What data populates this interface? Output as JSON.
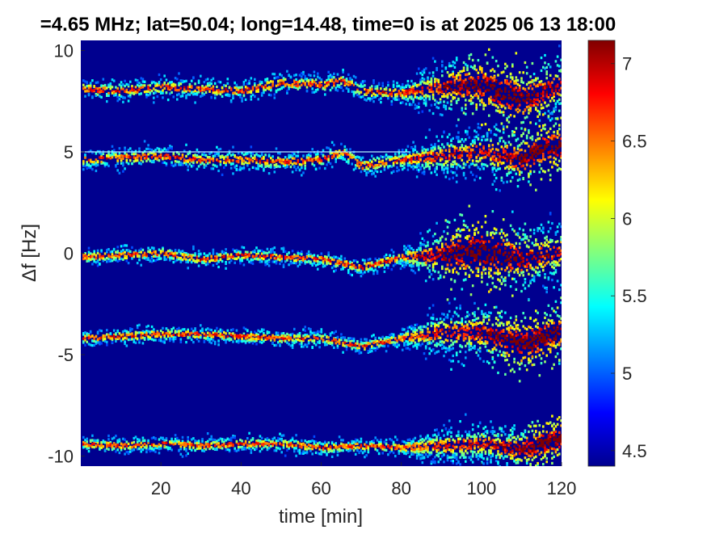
{
  "chart_data": {
    "type": "heatmap",
    "title": "=4.65 MHz;  lat=50.04; long=14.48, time=0 is at 2025 06 13 18:00",
    "xlabel": "time [min]",
    "ylabel": "Δf [Hz]",
    "xlim": [
      0,
      120
    ],
    "ylim": [
      -10.5,
      10.5
    ],
    "xticks": [
      20,
      40,
      60,
      80,
      100,
      120
    ],
    "yticks": [
      -10,
      -5,
      0,
      5,
      10
    ],
    "colorbar": {
      "clim": [
        4.4,
        7.15
      ],
      "ticks": [
        4.5,
        5,
        5.5,
        6,
        6.5,
        7
      ],
      "colormap": "jet"
    },
    "background_color": "#00008f",
    "reference_line": {
      "y": 5.0,
      "x_end": 82
    },
    "traces": [
      {
        "points": [
          [
            0,
            8.1
          ],
          [
            10,
            8.0
          ],
          [
            20,
            8.2
          ],
          [
            30,
            8.1
          ],
          [
            40,
            8.0
          ],
          [
            50,
            8.4
          ],
          [
            60,
            8.3
          ],
          [
            65,
            8.5
          ],
          [
            70,
            8.0
          ],
          [
            80,
            7.9
          ],
          [
            90,
            8.2
          ],
          [
            100,
            8.3
          ],
          [
            110,
            7.6
          ],
          [
            120,
            8.3
          ]
        ],
        "width_before_80": 0.45,
        "width_after_80": 1.3,
        "late_intensity_peak_x": 105
      },
      {
        "points": [
          [
            0,
            4.6
          ],
          [
            10,
            4.7
          ],
          [
            20,
            4.8
          ],
          [
            30,
            4.6
          ],
          [
            40,
            4.6
          ],
          [
            50,
            4.5
          ],
          [
            60,
            4.6
          ],
          [
            65,
            5.0
          ],
          [
            70,
            4.3
          ],
          [
            80,
            4.6
          ],
          [
            90,
            4.8
          ],
          [
            100,
            5.0
          ],
          [
            110,
            4.6
          ],
          [
            115,
            5.2
          ],
          [
            120,
            5.3
          ]
        ],
        "width_before_80": 0.45,
        "width_after_80": 1.1,
        "late_intensity_peak_x": 118
      },
      {
        "points": [
          [
            0,
            -0.2
          ],
          [
            10,
            -0.1
          ],
          [
            20,
            0.0
          ],
          [
            30,
            -0.3
          ],
          [
            40,
            -0.1
          ],
          [
            50,
            -0.2
          ],
          [
            60,
            -0.3
          ],
          [
            65,
            -0.5
          ],
          [
            70,
            -0.7
          ],
          [
            80,
            -0.2
          ],
          [
            90,
            -0.1
          ],
          [
            100,
            0.1
          ],
          [
            110,
            -0.3
          ],
          [
            120,
            0.1
          ]
        ],
        "width_before_80": 0.35,
        "width_after_80": 1.4,
        "late_intensity_peak_x": 100
      },
      {
        "points": [
          [
            0,
            -4.2
          ],
          [
            10,
            -4.1
          ],
          [
            20,
            -4.0
          ],
          [
            30,
            -4.0
          ],
          [
            40,
            -4.1
          ],
          [
            50,
            -4.2
          ],
          [
            60,
            -4.2
          ],
          [
            65,
            -4.4
          ],
          [
            70,
            -4.6
          ],
          [
            80,
            -4.2
          ],
          [
            90,
            -3.9
          ],
          [
            100,
            -3.9
          ],
          [
            110,
            -4.5
          ],
          [
            120,
            -3.8
          ]
        ],
        "width_before_80": 0.35,
        "width_after_80": 1.2,
        "late_intensity_peak_x": 112
      },
      {
        "points": [
          [
            0,
            -9.4
          ],
          [
            10,
            -9.5
          ],
          [
            20,
            -9.4
          ],
          [
            30,
            -9.5
          ],
          [
            40,
            -9.4
          ],
          [
            50,
            -9.4
          ],
          [
            60,
            -9.6
          ],
          [
            70,
            -9.5
          ],
          [
            80,
            -9.6
          ],
          [
            90,
            -9.5
          ],
          [
            100,
            -9.4
          ],
          [
            110,
            -9.7
          ],
          [
            120,
            -9.1
          ]
        ],
        "width_before_80": 0.35,
        "width_after_80": 0.9,
        "late_intensity_peak_x": 118
      }
    ]
  }
}
